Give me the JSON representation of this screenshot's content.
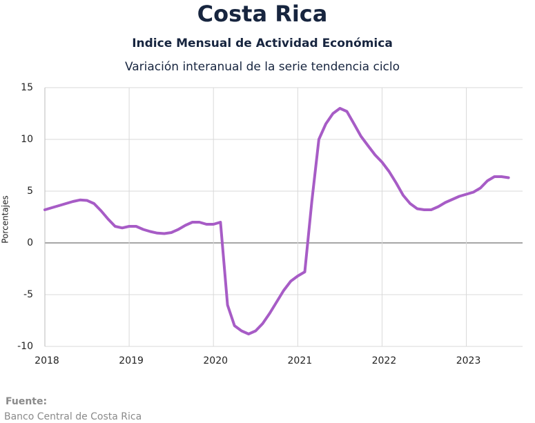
{
  "chart_data": {
    "type": "line",
    "title": "Costa Rica",
    "subtitle": "Indice Mensual de  Actividad Económica",
    "description": "Variación interanual de la serie tendencia ciclo",
    "ylabel": "Porcentajes",
    "source_label": "Fuente:",
    "source": "Banco Central de Costa Rica",
    "x": [
      2018,
      2018.083,
      2018.167,
      2018.25,
      2018.333,
      2018.417,
      2018.5,
      2018.583,
      2018.667,
      2018.75,
      2018.833,
      2018.917,
      2019,
      2019.083,
      2019.167,
      2019.25,
      2019.333,
      2019.417,
      2019.5,
      2019.583,
      2019.667,
      2019.75,
      2019.833,
      2019.917,
      2020,
      2020.083,
      2020.167,
      2020.25,
      2020.333,
      2020.417,
      2020.5,
      2020.583,
      2020.667,
      2020.75,
      2020.833,
      2020.917,
      2021,
      2021.083,
      2021.167,
      2021.25,
      2021.333,
      2021.417,
      2021.5,
      2021.583,
      2021.667,
      2021.75,
      2021.833,
      2021.917,
      2022,
      2022.083,
      2022.167,
      2022.25,
      2022.333,
      2022.417,
      2022.5,
      2022.583,
      2022.667,
      2022.75,
      2022.833,
      2022.917,
      2023,
      2023.083,
      2023.167,
      2023.25,
      2023.333,
      2023.417,
      2023.5
    ],
    "series": [
      {
        "name": "Variación interanual",
        "color": "#a75cc6",
        "values": [
          3.2,
          3.4,
          3.6,
          3.8,
          4.0,
          4.15,
          4.1,
          3.8,
          3.1,
          2.3,
          1.6,
          1.45,
          1.6,
          1.6,
          1.3,
          1.1,
          0.95,
          0.9,
          1.0,
          1.3,
          1.7,
          2.0,
          2.0,
          1.8,
          1.8,
          2.0,
          -6.0,
          -8.0,
          -8.5,
          -8.8,
          -8.5,
          -7.8,
          -6.8,
          -5.7,
          -4.6,
          -3.7,
          -3.2,
          -2.8,
          4.0,
          10.0,
          11.5,
          12.5,
          13.0,
          12.7,
          11.5,
          10.3,
          9.4,
          8.5,
          7.8,
          6.9,
          5.8,
          4.6,
          3.8,
          3.3,
          3.2,
          3.2,
          3.5,
          3.9,
          4.2,
          4.5,
          4.7,
          4.9,
          5.3,
          6.0,
          6.4,
          6.4,
          6.3
        ]
      }
    ],
    "xlim": [
      2018,
      2023.667
    ],
    "xticks": [
      2018,
      2019,
      2020,
      2021,
      2022,
      2023
    ],
    "ylim": [
      -10,
      15
    ],
    "yticks": [
      15,
      10,
      5,
      0,
      -5,
      -10
    ],
    "grid": true
  }
}
